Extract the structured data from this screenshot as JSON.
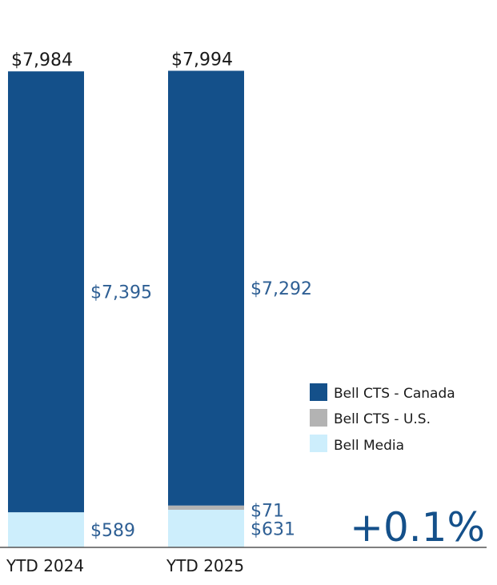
{
  "chart_data": {
    "type": "bar",
    "stacked": true,
    "categories": [
      "YTD 2024",
      "YTD 2025"
    ],
    "series": [
      {
        "name": "Bell Media",
        "values": [
          589,
          631
        ],
        "labels": [
          "$589",
          "$631"
        ],
        "color": "#cdeefc"
      },
      {
        "name": "Bell CTS - U.S.",
        "values": [
          0,
          71
        ],
        "labels": [
          "",
          "$71"
        ],
        "color": "#b3b3b3"
      },
      {
        "name": "Bell CTS - Canada",
        "values": [
          7395,
          7292
        ],
        "labels": [
          "$7,395",
          "$7,292"
        ],
        "color": "#14508a"
      }
    ],
    "totals": [
      7984,
      7994
    ],
    "total_labels": [
      "$7,984",
      "$7,994"
    ],
    "legend": [
      "Bell CTS - Canada",
      "Bell CTS - U.S.",
      "Bell Media"
    ],
    "legend_position": "right",
    "change_label": "+0.1%",
    "ylim": [
      0,
      8000
    ],
    "grid": false
  },
  "colors": {
    "canada": "#14508a",
    "us": "#b3b3b3",
    "media": "#cdeefc",
    "value_text": "#2e5f94",
    "axis": "#555555"
  }
}
